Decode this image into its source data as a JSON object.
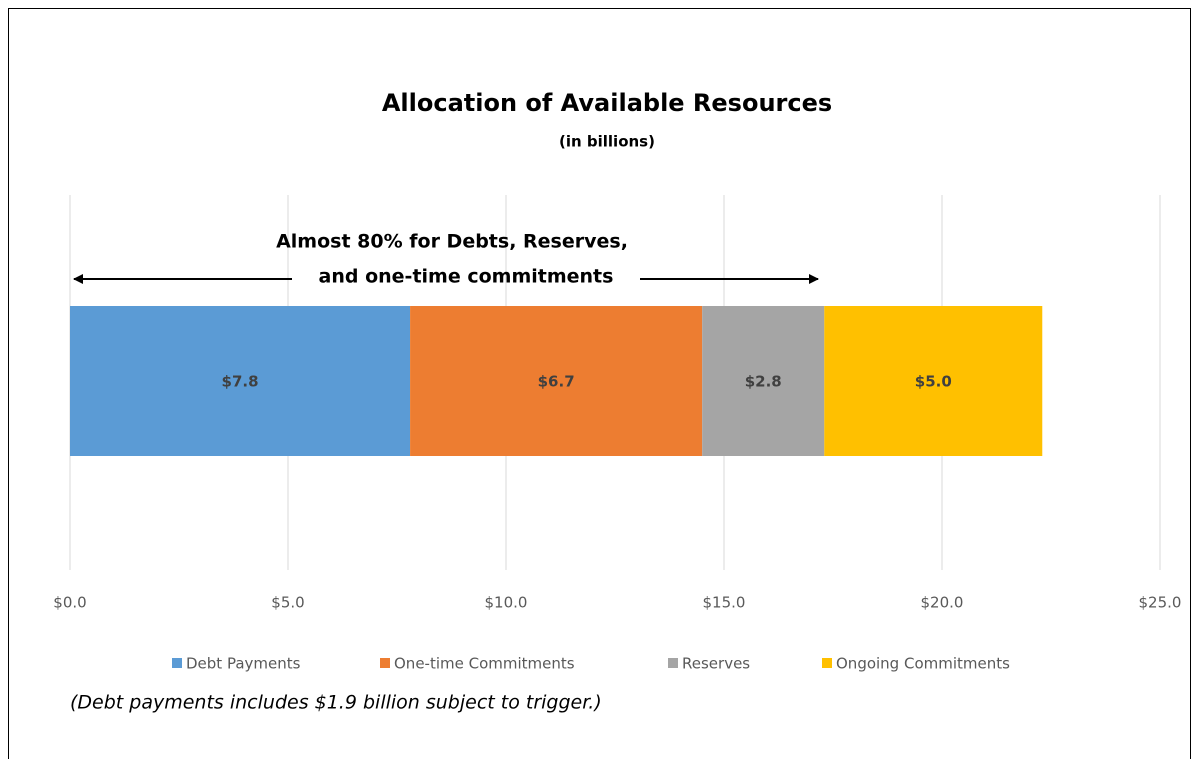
{
  "chart_data": {
    "type": "bar",
    "orientation": "horizontal",
    "stacked": true,
    "title": "Allocation of Available Resources",
    "subtitle": "(in billions)",
    "annotation": [
      "Almost 80% for Debts,  Reserves,",
      "and one-time commitments"
    ],
    "footnote": "(Debt payments includes $1.9 billion subject to trigger.)",
    "series": [
      {
        "name": "Debt Payments",
        "color": "#5b9bd5",
        "values": [
          7.8
        ],
        "value_labels": [
          "$7.8"
        ]
      },
      {
        "name": "One-time Commitments",
        "color": "#ed7d31",
        "values": [
          6.7
        ],
        "value_labels": [
          "$6.7"
        ]
      },
      {
        "name": "Reserves",
        "color": "#a5a5a5",
        "values": [
          2.8
        ],
        "value_labels": [
          "$2.8"
        ]
      },
      {
        "name": "Ongoing Commitments",
        "color": "#ffc000",
        "values": [
          5.0
        ],
        "value_labels": [
          "$5.0"
        ]
      }
    ],
    "xlim": [
      0,
      25
    ],
    "xticks": [
      {
        "value": 0,
        "label": "$0.0"
      },
      {
        "value": 5,
        "label": "$5.0"
      },
      {
        "value": 10,
        "label": "$10.0"
      },
      {
        "value": 15,
        "label": "$15.0"
      },
      {
        "value": 20,
        "label": "$20.0"
      },
      {
        "value": 25,
        "label": "$25.0"
      }
    ],
    "grid": true,
    "legend": "bottom"
  }
}
